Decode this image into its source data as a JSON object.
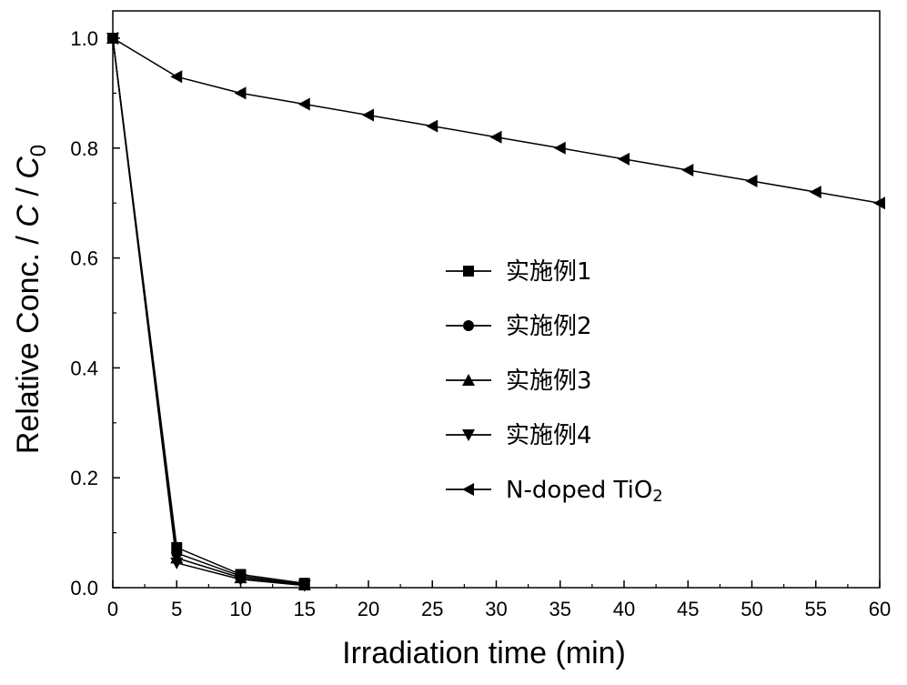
{
  "chart_data": {
    "type": "line",
    "xlabel": "Irradiation time (min)",
    "ylabel_parts": {
      "main": "Relative Conc. / ",
      "c1": "C",
      "sep": " / ",
      "c2": "C",
      "sub": "0"
    },
    "xlim": [
      0,
      60
    ],
    "ylim": [
      0,
      1.0
    ],
    "xticks": [
      0,
      5,
      10,
      15,
      20,
      25,
      30,
      35,
      40,
      45,
      50,
      55,
      60
    ],
    "yticks": [
      "0.0",
      "0.2",
      "0.4",
      "0.6",
      "0.8",
      "1.0"
    ],
    "grid": false,
    "legend_position": "center",
    "series": [
      {
        "name": "实施例1",
        "marker": "square",
        "x": [
          0,
          5,
          10,
          15
        ],
        "y": [
          1.0,
          0.073,
          0.024,
          0.008
        ]
      },
      {
        "name": "实施例2",
        "marker": "circle",
        "x": [
          0,
          5,
          10,
          15
        ],
        "y": [
          1.0,
          0.063,
          0.021,
          0.006
        ]
      },
      {
        "name": "实施例3",
        "marker": "triangle-up",
        "x": [
          0,
          5,
          10,
          15
        ],
        "y": [
          1.0,
          0.054,
          0.018,
          0.005
        ]
      },
      {
        "name": "实施例4",
        "marker": "triangle-down",
        "x": [
          0,
          5,
          10,
          15
        ],
        "y": [
          1.0,
          0.045,
          0.015,
          0.004
        ]
      },
      {
        "name": "N-doped TiO",
        "name_sub": "2",
        "marker": "triangle-left",
        "x": [
          0,
          5,
          10,
          15,
          20,
          25,
          30,
          35,
          40,
          45,
          50,
          55,
          60
        ],
        "y": [
          1.0,
          0.93,
          0.9,
          0.88,
          0.86,
          0.84,
          0.82,
          0.8,
          0.78,
          0.76,
          0.74,
          0.72,
          0.7
        ]
      }
    ]
  }
}
